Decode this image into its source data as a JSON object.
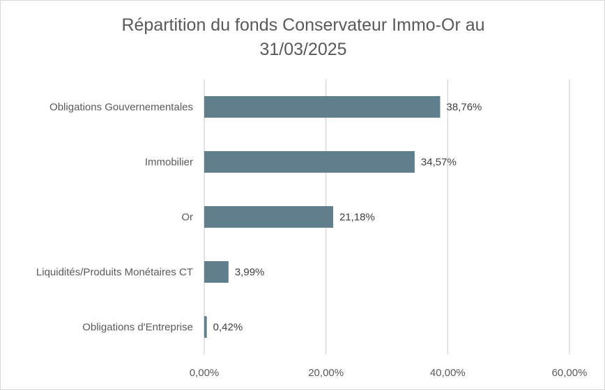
{
  "chart_data": {
    "type": "bar",
    "orientation": "horizontal",
    "title_lines": [
      "Répartition du fonds Conservateur Immo-Or au",
      "31/03/2025"
    ],
    "categories": [
      "Obligations Gouvernementales",
      "Immobilier",
      "Or",
      "Liquidités/Produits Monétaires CT",
      "Obligations d'Entreprise"
    ],
    "values": [
      38.76,
      34.57,
      21.18,
      3.99,
      0.42
    ],
    "data_labels": [
      "38,76%",
      "34,57%",
      "21,18%",
      "3,99%",
      "0,42%"
    ],
    "xlim": [
      0,
      60
    ],
    "x_ticks": [
      0,
      20,
      40,
      60
    ],
    "x_tick_labels": [
      "0,00%",
      "20,00%",
      "40,00%",
      "60,00%"
    ],
    "grid": "vertical",
    "bar_color": "#5f7f8c",
    "grid_color": "#d9d9d9"
  }
}
